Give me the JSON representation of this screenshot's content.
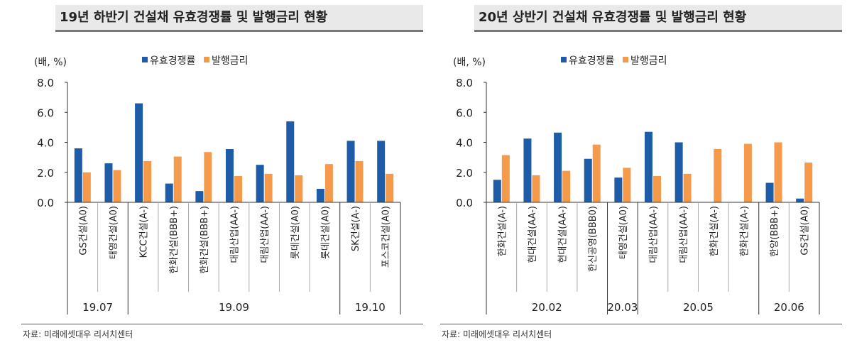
{
  "colors": {
    "competition": "#1f5ca8",
    "rate": "#f5994a"
  },
  "source_left": "자료: 미래에셋대우 리서치센터",
  "source_right": "자료: 미래에셋대우 리서치센터",
  "chart_data": [
    {
      "type": "bar",
      "title": "19년 하반기 건설채 유효경쟁률 및 발행금리 현황",
      "unit_label": "(배, %)",
      "ylim": [
        0,
        8
      ],
      "yticks": [
        "0.0",
        "2.0",
        "4.0",
        "6.0",
        "8.0"
      ],
      "legend_position": "top",
      "categories": [
        "GS건설(A0)",
        "태영건설(A0)",
        "KCC건설(A-)",
        "한화건설(BBB+)",
        "한화건설(BBB+)",
        "대림산업(AA-)",
        "대림산업(AA-)",
        "롯데건설(A0)",
        "롯데건설(A0)",
        "SK건설(A-)",
        "포스코건설(A0)"
      ],
      "groups": [
        {
          "label": "19.07",
          "count": 2
        },
        {
          "label": "19.09",
          "count": 7
        },
        {
          "label": "19.10",
          "count": 2
        }
      ],
      "series": [
        {
          "name": "유효경쟁률",
          "values": [
            3.6,
            2.6,
            6.6,
            1.25,
            0.75,
            3.55,
            2.5,
            5.4,
            0.9,
            4.1,
            4.1
          ]
        },
        {
          "name": "발행금리",
          "values": [
            2.0,
            2.15,
            2.75,
            3.05,
            3.35,
            1.75,
            1.9,
            1.8,
            2.55,
            2.75,
            1.9
          ]
        }
      ]
    },
    {
      "type": "bar",
      "title": "20년 상반기 건설채 유효경쟁률 및 발행금리 현황",
      "unit_label": "(배, %)",
      "ylim": [
        0,
        8
      ],
      "yticks": [
        "0.0",
        "2.0",
        "4.0",
        "6.0",
        "8.0"
      ],
      "legend_position": "top",
      "categories": [
        "한화건설(A-)",
        "현대건설(AA-)",
        "현대건설(AA-)",
        "한신공영(BBB0)",
        "태영건설(A0)",
        "대림산업(AA-)",
        "대림산업(AA-)",
        "한화건설(A-)",
        "한화건설(A-)",
        "한양(BBB+)",
        "GS건설(A0)"
      ],
      "groups": [
        {
          "label": "20.02",
          "count": 4
        },
        {
          "label": "20.03",
          "count": 1
        },
        {
          "label": "20.05",
          "count": 4
        },
        {
          "label": "20.06",
          "count": 2
        }
      ],
      "series": [
        {
          "name": "유효경쟁률",
          "values": [
            1.5,
            4.25,
            4.65,
            2.9,
            1.65,
            4.7,
            4.0,
            null,
            null,
            1.3,
            0.25
          ]
        },
        {
          "name": "발행금리",
          "values": [
            3.15,
            1.8,
            2.1,
            3.85,
            2.3,
            1.75,
            1.9,
            3.55,
            3.9,
            4.0,
            2.65
          ]
        }
      ]
    }
  ]
}
